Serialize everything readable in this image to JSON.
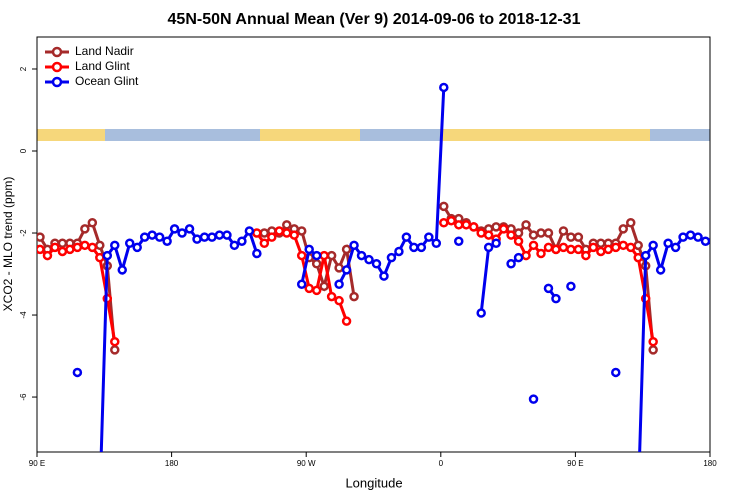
{
  "chart_data": {
    "type": "line",
    "title": "45N-50N Annual Mean (Ver 9)   2014-09-06 to 2018-12-31",
    "x_label": "Longitude",
    "y_label": "XCO2 - MLO trend (ppm)",
    "xlim": [
      90,
      540
    ],
    "ylim": [
      -7.34,
      2.78
    ],
    "xticks": [
      {
        "value": 90,
        "label": "90 E"
      },
      180,
      {
        "value": 270,
        "label": "90 W"
      },
      {
        "value": 360,
        "label": "0"
      },
      {
        "value": 450,
        "label": "90 E"
      },
      {
        "value": 540,
        "label": "180"
      }
    ],
    "yticks": [
      -6,
      -4,
      -2,
      0,
      2
    ],
    "legend": "top-left",
    "x": [
      92,
      97,
      102,
      107,
      112,
      117,
      122,
      127,
      132,
      137,
      142,
      147,
      152,
      157,
      162,
      167,
      172,
      177,
      182,
      187,
      192,
      197,
      202,
      207,
      212,
      217,
      222,
      227,
      232,
      237,
      242,
      247,
      252,
      257,
      262,
      267,
      272,
      277,
      282,
      287,
      292,
      297,
      302,
      307,
      312,
      317,
      322,
      327,
      332,
      337,
      342,
      347,
      352,
      357,
      362,
      367,
      372,
      377,
      382,
      387,
      392,
      397,
      402,
      407,
      412,
      417,
      422,
      427,
      432,
      437,
      442,
      447,
      452,
      457,
      462,
      467,
      472,
      477,
      482,
      487,
      492,
      497,
      502,
      507,
      512,
      517,
      522,
      527,
      532,
      537
    ],
    "series": [
      {
        "name": "Land Nadir",
        "color": "#a52a2a",
        "values": [
          -2.1,
          -2.4,
          -2.25,
          -2.25,
          -2.25,
          -2.25,
          -1.9,
          -1.75,
          -2.3,
          -2.8,
          -4.85,
          null,
          null,
          null,
          null,
          null,
          null,
          null,
          null,
          null,
          null,
          null,
          null,
          null,
          null,
          null,
          null,
          null,
          null,
          null,
          -2.0,
          -1.95,
          -2.0,
          -1.8,
          -1.9,
          -1.95,
          -2.6,
          -2.75,
          -3.3,
          -2.55,
          -2.85,
          -2.4,
          -3.55,
          null,
          null,
          null,
          null,
          null,
          null,
          null,
          null,
          null,
          null,
          null,
          -1.35,
          -1.65,
          -1.65,
          -1.75,
          -1.85,
          -1.95,
          -1.9,
          -1.85,
          -1.85,
          -1.9,
          -2.0,
          -1.8,
          -2.05,
          -2.0,
          -2.0,
          -2.4,
          -1.95,
          -2.1,
          -2.1,
          -2.4,
          -2.25,
          -2.25,
          -2.25,
          -2.25,
          -1.9,
          -1.75,
          -2.3,
          -2.8,
          -4.85,
          null,
          null,
          null,
          null,
          null,
          null,
          null
        ]
      },
      {
        "name": "Land Glint",
        "color": "#ff0000",
        "values": [
          -2.4,
          -2.55,
          -2.35,
          -2.45,
          -2.4,
          -2.35,
          -2.3,
          -2.35,
          -2.6,
          -3.6,
          -4.65,
          null,
          null,
          null,
          null,
          null,
          null,
          null,
          null,
          null,
          null,
          null,
          null,
          null,
          null,
          null,
          null,
          null,
          null,
          -2.0,
          -2.25,
          -2.1,
          -1.95,
          -2.0,
          -2.05,
          -2.55,
          -3.35,
          -3.4,
          -2.55,
          -3.55,
          -3.65,
          -4.15,
          null,
          null,
          null,
          null,
          null,
          null,
          null,
          null,
          null,
          null,
          null,
          null,
          -1.75,
          -1.7,
          -1.8,
          -1.8,
          -1.85,
          -2.0,
          -2.05,
          -2.15,
          -1.9,
          -2.05,
          -2.2,
          -2.55,
          -2.3,
          -2.5,
          -2.35,
          -2.4,
          -2.35,
          -2.4,
          -2.4,
          -2.55,
          -2.35,
          -2.45,
          -2.4,
          -2.35,
          -2.3,
          -2.35,
          -2.6,
          -3.6,
          -4.65,
          null,
          null,
          null,
          null,
          null,
          null,
          null
        ]
      },
      {
        "name": "Ocean Glint",
        "color": "#0000ee",
        "values": [
          null,
          null,
          null,
          null,
          null,
          -5.4,
          null,
          null,
          -8.5,
          -2.55,
          -2.3,
          -2.9,
          -2.25,
          -2.35,
          -2.1,
          -2.05,
          -2.1,
          -2.2,
          -1.9,
          -2.0,
          -1.9,
          -2.15,
          -2.1,
          -2.1,
          -2.05,
          -2.05,
          -2.3,
          -2.2,
          -1.95,
          -2.5,
          null,
          null,
          null,
          null,
          null,
          -3.25,
          -2.4,
          -2.55,
          null,
          null,
          -3.25,
          -2.9,
          -2.3,
          -2.55,
          -2.65,
          -2.75,
          -3.05,
          -2.6,
          -2.45,
          -2.1,
          -2.35,
          -2.35,
          -2.1,
          -2.25,
          1.55,
          null,
          -2.2,
          null,
          null,
          -3.95,
          -2.35,
          -2.25,
          null,
          -2.75,
          -2.6,
          null,
          -6.05,
          null,
          -3.35,
          -3.6,
          null,
          -3.3,
          null,
          null,
          null,
          null,
          null,
          -5.4,
          null,
          null,
          -8.5,
          -2.55,
          -2.3,
          -2.9,
          -2.25,
          -2.35,
          -2.1,
          -2.05,
          -2.1,
          -2.2
        ]
      }
    ]
  }
}
